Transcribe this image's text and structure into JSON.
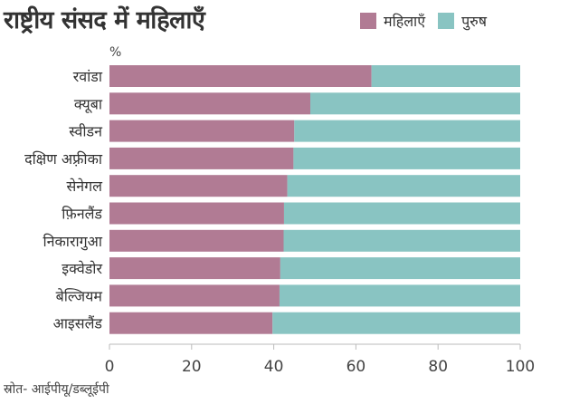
{
  "title": "राष्ट्रीय संसद में महिलाएँ",
  "unit_label": "%",
  "source": "स्रोत- आईपीयू/डब्लूईपी",
  "legend": [
    {
      "name": "महिलाएँ",
      "color": "#b17b94"
    },
    {
      "name": "पुरुष",
      "color": "#89c4c2"
    }
  ],
  "chart_data": {
    "type": "bar",
    "orientation": "horizontal",
    "stacked": true,
    "categories": [
      "रवांडा",
      "क्यूबा",
      "स्वीडन",
      "दक्षिण अफ़्रीका",
      "सेनेगल",
      "फ़िनलैंड",
      "निकारागुआ",
      "इक्वेडोर",
      "बेल्जियम",
      "आइसलैंड"
    ],
    "series": [
      {
        "name": "महिलाएँ",
        "color": "#b17b94",
        "values": [
          63.8,
          48.9,
          45.0,
          44.8,
          43.3,
          42.5,
          42.4,
          41.6,
          41.4,
          39.7
        ]
      },
      {
        "name": "पुरुष",
        "color": "#89c4c2",
        "values": [
          36.2,
          51.1,
          55.0,
          55.2,
          56.7,
          57.5,
          57.6,
          58.4,
          58.6,
          60.3
        ]
      }
    ],
    "xlim": [
      0,
      100
    ],
    "xticks": [
      0,
      20,
      40,
      60,
      80,
      100
    ],
    "grid": false,
    "legend_position": "top-right"
  }
}
